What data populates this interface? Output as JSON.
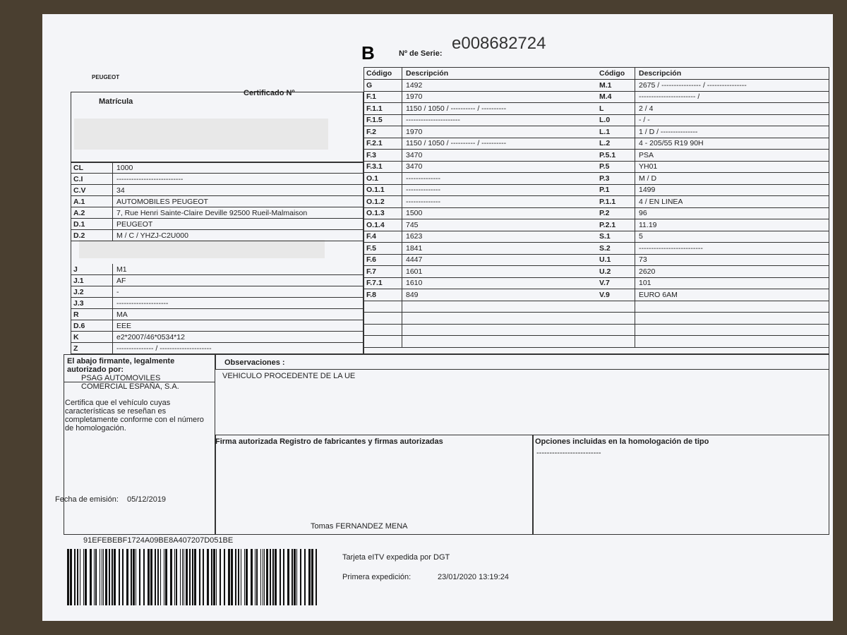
{
  "header": {
    "brand": "PEUGEOT",
    "letter": "B",
    "serial_label": "Nº de Serie:",
    "serial": "e008682724",
    "matricula_label": "Matrícula",
    "certificado_label": "Certificado Nº"
  },
  "left_table": {
    "rows_top": [
      {
        "code": "CL",
        "value": "1000"
      },
      {
        "code": "C.I",
        "value": "---------------------------"
      },
      {
        "code": "C.V",
        "value": "34"
      },
      {
        "code": "A.1",
        "value": "AUTOMOBILES PEUGEOT"
      },
      {
        "code": "A.2",
        "value": "7, Rue Henri Sainte-Claire Deville 92500 Rueil-Malmaison"
      },
      {
        "code": "D.1",
        "value": "PEUGEOT"
      },
      {
        "code": "D.2",
        "value": "M / C / YHZJ-C2U000"
      }
    ],
    "rows_bottom": [
      {
        "code": "J",
        "value": "M1"
      },
      {
        "code": "J.1",
        "value": "AF"
      },
      {
        "code": "J.2",
        "value": "-"
      },
      {
        "code": "J.3",
        "value": "---------------------"
      },
      {
        "code": "R",
        "value": "MA"
      },
      {
        "code": "D.6",
        "value": "EEE"
      },
      {
        "code": "K",
        "value": "e2*2007/46*0534*12"
      },
      {
        "code": "Z",
        "value": "--------------- / ---------------------"
      }
    ]
  },
  "middle_table": {
    "headers": [
      "Código",
      "Descripción"
    ],
    "rows": [
      {
        "code": "G",
        "value": "1492"
      },
      {
        "code": "F.1",
        "value": "1970"
      },
      {
        "code": "F.1.1",
        "value": "1150 / 1050 / ---------- / ----------"
      },
      {
        "code": "F.1.5",
        "value": "----------------------"
      },
      {
        "code": "F.2",
        "value": "1970"
      },
      {
        "code": "F.2.1",
        "value": "1150 / 1050 / ---------- / ----------"
      },
      {
        "code": "F.3",
        "value": "3470"
      },
      {
        "code": "F.3.1",
        "value": "3470"
      },
      {
        "code": "O.1",
        "value": "--------------"
      },
      {
        "code": "O.1.1",
        "value": "--------------"
      },
      {
        "code": "O.1.2",
        "value": "--------------"
      },
      {
        "code": "O.1.3",
        "value": "1500"
      },
      {
        "code": "O.1.4",
        "value": "745"
      },
      {
        "code": "F.4",
        "value": "1623"
      },
      {
        "code": "F.5",
        "value": "1841"
      },
      {
        "code": "F.6",
        "value": "4447"
      },
      {
        "code": "F.7",
        "value": "1601"
      },
      {
        "code": "F.7.1",
        "value": "1610"
      },
      {
        "code": "F.8",
        "value": "849"
      }
    ]
  },
  "right_table": {
    "headers": [
      "Código",
      "Descripción"
    ],
    "rows": [
      {
        "code": "M.1",
        "value": "2675 / ---------------- / ----------------"
      },
      {
        "code": "M.4",
        "value": "----------------------- /"
      },
      {
        "code": "L",
        "value": "2 / 4"
      },
      {
        "code": "L.0",
        "value": "- / -"
      },
      {
        "code": "L.1",
        "value": "1 / D / ---------------"
      },
      {
        "code": "L.2",
        "value": "4 - 205/55 R19 90H"
      },
      {
        "code": "P.5.1",
        "value": "PSA"
      },
      {
        "code": "P.5",
        "value": "YH01"
      },
      {
        "code": "P.3",
        "value": "M / D"
      },
      {
        "code": "P.1",
        "value": "1499"
      },
      {
        "code": "P.1.1",
        "value": "4 / EN LINEA"
      },
      {
        "code": "P.2",
        "value": "96"
      },
      {
        "code": "P.2.1",
        "value": "11.19"
      },
      {
        "code": "S.1",
        "value": "5"
      },
      {
        "code": "S.2",
        "value": "--------------------------"
      },
      {
        "code": "U.1",
        "value": "73"
      },
      {
        "code": "U.2",
        "value": "2620"
      },
      {
        "code": "V.7",
        "value": "101"
      },
      {
        "code": "V.9",
        "value": "EURO 6AM"
      }
    ]
  },
  "signatory": {
    "label": "El abajo firmante, legalmente autorizado por:",
    "company": "PSAG AUTOMOVILES COMERCIAL ESPAÑA, S.A.",
    "statement": "Certifica que el vehículo cuyas características se reseñan es completamente conforme con el número de homologación.",
    "date_label": "Fecha de emisión:",
    "date": "05/12/2019"
  },
  "observations": {
    "label": "Observaciones :",
    "text": "VEHICULO PROCEDENTE DE LA UE"
  },
  "signature": {
    "label": "Firma autorizada Registro de fabricantes y firmas autorizadas",
    "name": "Tomas FERNANDEZ MENA"
  },
  "options": {
    "label": "Opciones incluidas en la homologación de tipo",
    "text": "-------------------------"
  },
  "footer": {
    "barcode_text": "91EFEBEBF1724A09BE8A407207D051BE",
    "issuer": "Tarjeta eITV expedida por DGT",
    "first_issue_label": "Primera expedición:",
    "first_issue": "23/01/2020 13:19:24"
  }
}
